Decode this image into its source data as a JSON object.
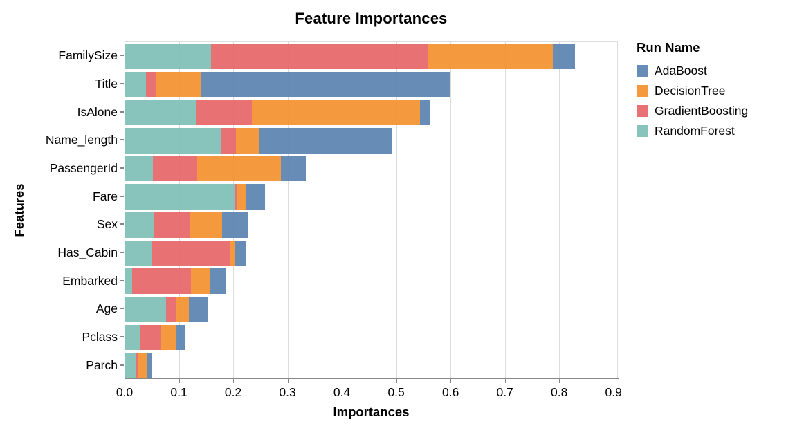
{
  "title": "Feature Importances",
  "legend": {
    "title": "Run Name",
    "entries": [
      {
        "label": "AdaBoost",
        "color": "#5b84b2"
      },
      {
        "label": "DecisionTree",
        "color": "#f3912e"
      },
      {
        "label": "GradientBoosting",
        "color": "#e66768"
      },
      {
        "label": "RandomForest",
        "color": "#7fbeb7"
      }
    ]
  },
  "colors": {
    "grid": "#dcdcdc",
    "axis": "#888888",
    "plot_border": "#dddddd",
    "background": "#ffffff"
  },
  "chart_data": {
    "type": "bar",
    "orientation": "horizontal",
    "stacked": true,
    "title": "Feature Importances",
    "xlabel": "Importances",
    "ylabel": "Features",
    "legend_title": "Run Name",
    "legend_position": "right",
    "grid": true,
    "xlim": [
      0,
      0.908
    ],
    "xticks": [
      0.0,
      0.1,
      0.2,
      0.3,
      0.4,
      0.5,
      0.6,
      0.7,
      0.8,
      0.9
    ],
    "categories": [
      "FamilySize",
      "Title",
      "IsAlone",
      "Name_length",
      "PassengerId",
      "Fare",
      "Sex",
      "Has_Cabin",
      "Embarked",
      "Age",
      "Pclass",
      "Parch"
    ],
    "stack_order_left_to_right": [
      "RandomForest",
      "GradientBoosting",
      "DecisionTree",
      "AdaBoost"
    ],
    "series": [
      {
        "name": "RandomForest",
        "color": "#7fbeb7",
        "values": [
          0.158,
          0.038,
          0.131,
          0.177,
          0.051,
          0.202,
          0.054,
          0.05,
          0.013,
          0.075,
          0.028,
          0.021
        ]
      },
      {
        "name": "GradientBoosting",
        "color": "#e66768",
        "values": [
          0.4,
          0.019,
          0.102,
          0.027,
          0.082,
          0.003,
          0.065,
          0.142,
          0.108,
          0.019,
          0.037,
          0.002
        ]
      },
      {
        "name": "DecisionTree",
        "color": "#f3912e",
        "values": [
          0.229,
          0.083,
          0.31,
          0.043,
          0.154,
          0.017,
          0.059,
          0.009,
          0.034,
          0.023,
          0.028,
          0.018
        ]
      },
      {
        "name": "AdaBoost",
        "color": "#5b84b2",
        "values": [
          0.041,
          0.458,
          0.018,
          0.245,
          0.045,
          0.035,
          0.048,
          0.022,
          0.03,
          0.034,
          0.016,
          0.007
        ]
      }
    ],
    "totals": [
      0.828,
      0.598,
      0.561,
      0.492,
      0.332,
      0.257,
      0.226,
      0.223,
      0.185,
      0.151,
      0.109,
      0.048
    ]
  }
}
